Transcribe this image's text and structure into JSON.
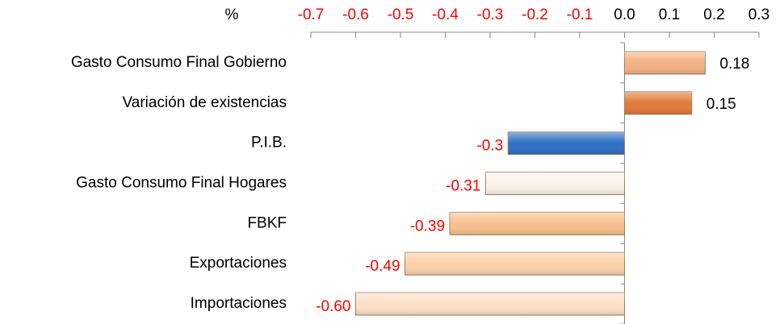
{
  "chart_data": {
    "type": "hbar",
    "unit_label": "%",
    "categories": [
      "Gasto Consumo Final Gobierno",
      "Variación de existencias",
      "P.I.B.",
      "Gasto Consumo Final Hogares",
      "FBKF",
      "Exportaciones",
      "Importaciones"
    ],
    "values": [
      0.18,
      0.15,
      -0.26,
      -0.31,
      -0.39,
      -0.49,
      -0.6
    ],
    "value_labels": [
      "0.18",
      "0.15",
      "-0.3",
      "-0.31",
      "-0.39",
      "-0.49",
      "-0.60"
    ],
    "colors": [
      "#f4b183",
      "#e07b39",
      "#2e6fc4",
      "#fdf3ea",
      "#f7c08c",
      "#fbd0a8",
      "#fde0c6"
    ],
    "negative_color": "#ff0000",
    "xlim": [
      -0.7,
      0.3
    ],
    "xticks": [
      -0.7,
      -0.6,
      -0.5,
      -0.4,
      -0.3,
      -0.2,
      -0.1,
      {
        "value": 0,
        "label": "0.0"
      },
      0.1,
      0.2,
      0.3
    ]
  }
}
